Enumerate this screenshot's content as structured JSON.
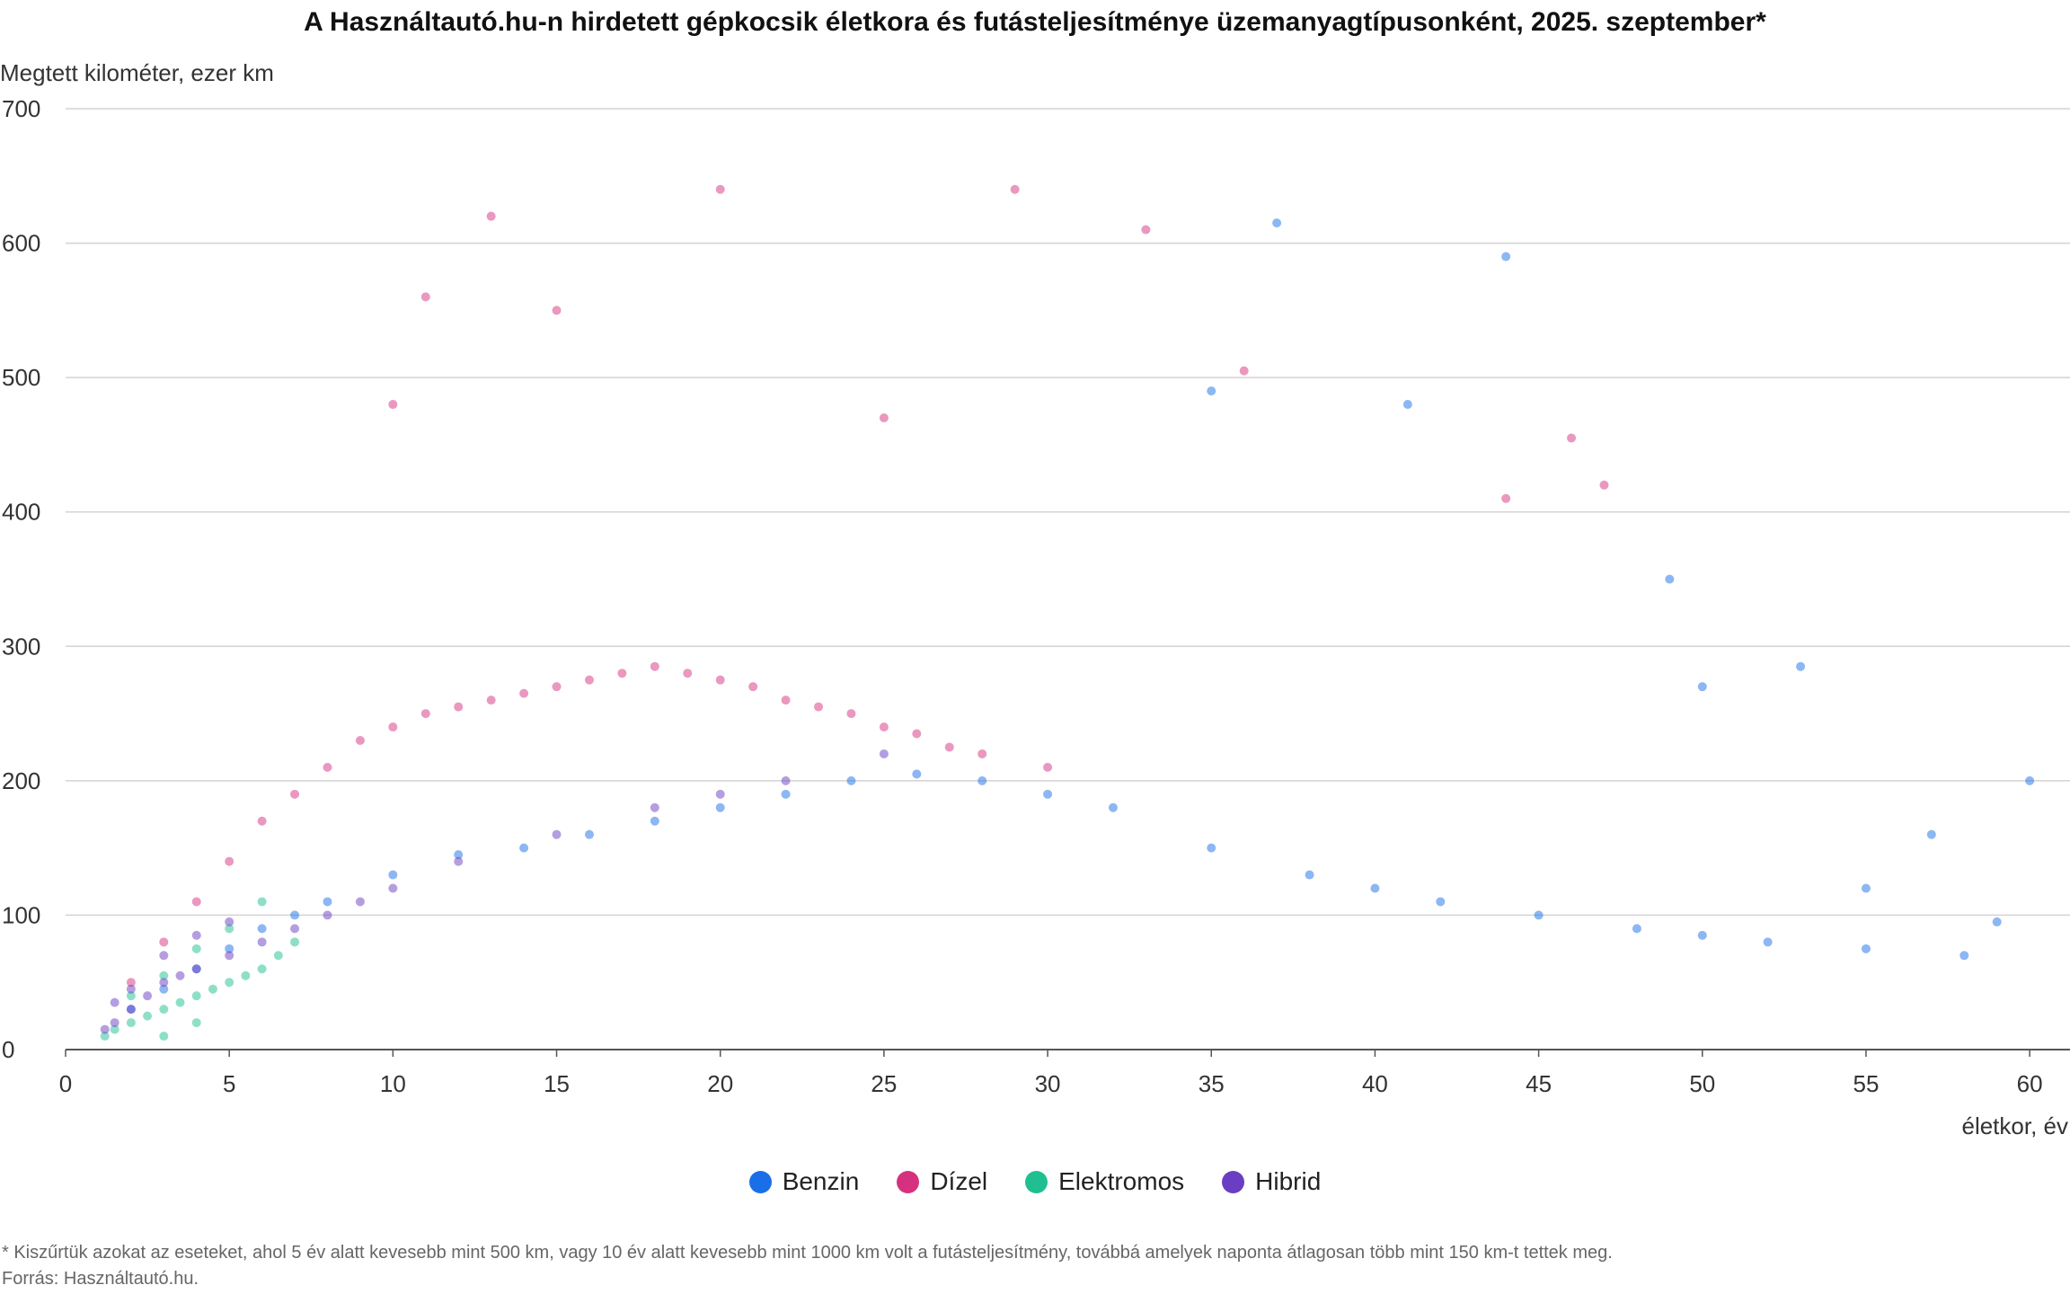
{
  "chart_data": {
    "type": "scatter",
    "title": "A Használtautó.hu-n hirdetett gépkocsik életkora és futásteljesítménye üzemanyagtípusonként, 2025. szeptember*",
    "ylabel": "Megtett kilométer, ezer km",
    "xlabel": "életkor, év",
    "xlim": [
      0,
      60.6
    ],
    "ylim": [
      0,
      700
    ],
    "x_ticks": [
      0,
      5,
      10,
      15,
      20,
      25,
      30,
      35,
      40,
      45,
      50,
      55,
      60
    ],
    "y_ticks": [
      0,
      100,
      200,
      300,
      400,
      500,
      600,
      700
    ],
    "grid": "horizontal",
    "legend_position": "bottom-center",
    "series": [
      {
        "name": "Benzin",
        "color": "#1a6fe8",
        "points": [
          [
            2,
            30
          ],
          [
            3,
            45
          ],
          [
            4,
            60
          ],
          [
            5,
            75
          ],
          [
            6,
            90
          ],
          [
            7,
            100
          ],
          [
            8,
            110
          ],
          [
            10,
            130
          ],
          [
            12,
            145
          ],
          [
            14,
            150
          ],
          [
            16,
            160
          ],
          [
            18,
            170
          ],
          [
            20,
            180
          ],
          [
            22,
            190
          ],
          [
            24,
            200
          ],
          [
            26,
            205
          ],
          [
            28,
            200
          ],
          [
            30,
            190
          ],
          [
            32,
            180
          ],
          [
            35,
            150
          ],
          [
            38,
            130
          ],
          [
            40,
            120
          ],
          [
            42,
            110
          ],
          [
            45,
            100
          ],
          [
            48,
            90
          ],
          [
            50,
            85
          ],
          [
            52,
            80
          ],
          [
            55,
            75
          ],
          [
            58,
            70
          ],
          [
            60,
            200
          ],
          [
            44,
            590
          ],
          [
            37,
            615
          ],
          [
            41,
            480
          ],
          [
            35,
            490
          ],
          [
            49,
            350
          ],
          [
            50,
            270
          ],
          [
            53,
            285
          ],
          [
            55,
            120
          ],
          [
            57,
            160
          ],
          [
            59,
            95
          ]
        ]
      },
      {
        "name": "Dízel",
        "color": "#d6317f",
        "points": [
          [
            2,
            50
          ],
          [
            3,
            80
          ],
          [
            4,
            110
          ],
          [
            5,
            140
          ],
          [
            6,
            170
          ],
          [
            7,
            190
          ],
          [
            8,
            210
          ],
          [
            9,
            230
          ],
          [
            10,
            240
          ],
          [
            11,
            250
          ],
          [
            12,
            255
          ],
          [
            13,
            260
          ],
          [
            14,
            265
          ],
          [
            15,
            270
          ],
          [
            16,
            275
          ],
          [
            17,
            280
          ],
          [
            18,
            285
          ],
          [
            19,
            280
          ],
          [
            20,
            275
          ],
          [
            21,
            270
          ],
          [
            22,
            260
          ],
          [
            23,
            255
          ],
          [
            24,
            250
          ],
          [
            25,
            240
          ],
          [
            26,
            235
          ],
          [
            27,
            225
          ],
          [
            28,
            220
          ],
          [
            30,
            210
          ],
          [
            11,
            560
          ],
          [
            13,
            620
          ],
          [
            20,
            640
          ],
          [
            29,
            640
          ],
          [
            33,
            610
          ],
          [
            36,
            505
          ],
          [
            46,
            455
          ],
          [
            44,
            410
          ],
          [
            10,
            480
          ],
          [
            15,
            550
          ],
          [
            25,
            470
          ],
          [
            47,
            420
          ]
        ]
      },
      {
        "name": "Elektromos",
        "color": "#1fbf91",
        "points": [
          [
            1.2,
            10
          ],
          [
            1.5,
            15
          ],
          [
            2,
            20
          ],
          [
            2.5,
            25
          ],
          [
            3,
            30
          ],
          [
            3.5,
            35
          ],
          [
            4,
            40
          ],
          [
            4.5,
            45
          ],
          [
            5,
            50
          ],
          [
            5.5,
            55
          ],
          [
            6,
            60
          ],
          [
            6.5,
            70
          ],
          [
            7,
            80
          ],
          [
            2,
            40
          ],
          [
            3,
            55
          ],
          [
            4,
            75
          ],
          [
            5,
            90
          ],
          [
            6,
            110
          ],
          [
            3,
            10
          ],
          [
            4,
            20
          ]
        ]
      },
      {
        "name": "Hibrid",
        "color": "#6a3ec2",
        "points": [
          [
            1.2,
            15
          ],
          [
            1.5,
            20
          ],
          [
            2,
            30
          ],
          [
            2.5,
            40
          ],
          [
            3,
            50
          ],
          [
            3.5,
            55
          ],
          [
            4,
            60
          ],
          [
            5,
            70
          ],
          [
            6,
            80
          ],
          [
            7,
            90
          ],
          [
            8,
            100
          ],
          [
            9,
            110
          ],
          [
            10,
            120
          ],
          [
            12,
            140
          ],
          [
            15,
            160
          ],
          [
            18,
            180
          ],
          [
            20,
            190
          ],
          [
            22,
            200
          ],
          [
            25,
            220
          ],
          [
            1.5,
            35
          ],
          [
            2,
            45
          ],
          [
            3,
            70
          ],
          [
            4,
            85
          ],
          [
            5,
            95
          ]
        ]
      }
    ],
    "footnote": "* Kiszűrtük azokat az eseteket, ahol 5 év alatt kevesebb mint 500 km, vagy 10 év alatt kevesebb mint 1000 km volt a futásteljesítmény, továbbá amelyek naponta átlagosan több mint 150 km-t tettek meg.",
    "source": "Forrás: Használtautó.hu."
  }
}
